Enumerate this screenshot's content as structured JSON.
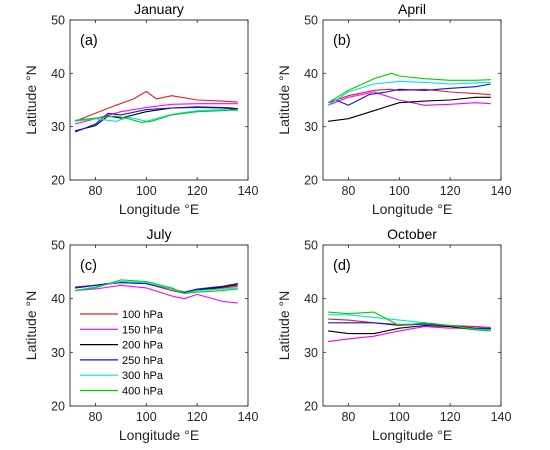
{
  "legend": [
    {
      "label": "100 hPa",
      "color": "#e8201f"
    },
    {
      "label": "150 hPa",
      "color": "#ff00ff"
    },
    {
      "label": "200 hPa",
      "color": "#000000"
    },
    {
      "label": "250 hPa",
      "color": "#1515d0"
    },
    {
      "label": "300 hPa",
      "color": "#00e0f0"
    },
    {
      "label": "400 hPa",
      "color": "#00d000"
    }
  ],
  "chart_data": [
    {
      "type": "line",
      "title": "January",
      "label": "(a)",
      "xlabel": "Longitude °E",
      "ylabel": "Latitude °N",
      "xlim": [
        70,
        140
      ],
      "ylim": [
        20,
        50
      ],
      "xticks": [
        80,
        100,
        120,
        140
      ],
      "yticks": [
        20,
        30,
        40,
        50
      ],
      "series": [
        {
          "x": [
            72,
            80,
            88,
            95,
            100,
            104,
            110,
            120,
            130,
            136
          ],
          "y": [
            31,
            32.5,
            34,
            35.2,
            36.6,
            35.2,
            35.8,
            35.0,
            34.8,
            34.6
          ]
        },
        {
          "x": [
            72,
            80,
            90,
            100,
            110,
            120,
            130,
            136
          ],
          "y": [
            30.5,
            31.5,
            32.8,
            33.6,
            34.2,
            34.3,
            34.3,
            34.3
          ]
        },
        {
          "x": [
            72,
            80,
            85,
            90,
            100,
            110,
            120,
            130,
            136
          ],
          "y": [
            29.2,
            30.2,
            32.0,
            31.6,
            32.8,
            33.5,
            33.7,
            33.6,
            33.4
          ]
        },
        {
          "x": [
            72,
            80,
            85,
            90,
            100,
            110,
            120,
            130,
            136
          ],
          "y": [
            29.0,
            30.5,
            32.5,
            32.2,
            33.2,
            33.5,
            33.6,
            33.5,
            33.2
          ]
        },
        {
          "x": [
            72,
            80,
            88,
            93,
            100,
            110,
            120,
            130,
            136
          ],
          "y": [
            31.0,
            31.5,
            31.0,
            31.8,
            31.0,
            32.3,
            33.0,
            33.2,
            33.0
          ]
        },
        {
          "x": [
            72,
            80,
            88,
            93,
            98,
            102,
            110,
            120,
            130,
            136
          ],
          "y": [
            31.2,
            31.6,
            32.0,
            31.5,
            30.8,
            31.0,
            32.2,
            32.8,
            33.0,
            33.2
          ]
        }
      ]
    },
    {
      "type": "line",
      "title": "April",
      "label": "(b)",
      "xlabel": "Longitude °E",
      "ylabel": "Latitude °N",
      "xlim": [
        70,
        140
      ],
      "ylim": [
        20,
        50
      ],
      "xticks": [
        80,
        100,
        120,
        140
      ],
      "yticks": [
        20,
        30,
        40,
        50
      ],
      "series": [
        {
          "x": [
            72,
            80,
            90,
            96,
            100,
            110,
            120,
            130,
            136
          ],
          "y": [
            34.5,
            35.8,
            36.8,
            37.0,
            36.8,
            37.0,
            36.5,
            36.2,
            36.0
          ]
        },
        {
          "x": [
            72,
            80,
            90,
            100,
            110,
            120,
            130,
            136
          ],
          "y": [
            34.0,
            35.5,
            36.5,
            35.0,
            34.0,
            34.2,
            34.5,
            34.3
          ]
        },
        {
          "x": [
            72,
            80,
            90,
            100,
            110,
            120,
            130,
            136
          ],
          "y": [
            31.0,
            31.5,
            33.0,
            34.5,
            34.8,
            35.0,
            35.5,
            35.5
          ]
        },
        {
          "x": [
            72,
            75,
            80,
            88,
            95,
            100,
            110,
            120,
            130,
            136
          ],
          "y": [
            34.0,
            35.0,
            34.0,
            36.0,
            36.5,
            37.0,
            36.8,
            37.2,
            37.5,
            38.0
          ]
        },
        {
          "x": [
            72,
            80,
            90,
            100,
            110,
            120,
            130,
            136
          ],
          "y": [
            34.0,
            36.5,
            38.0,
            38.5,
            38.3,
            38.0,
            38.2,
            38.3
          ]
        },
        {
          "x": [
            72,
            80,
            90,
            97,
            100,
            110,
            120,
            130,
            136
          ],
          "y": [
            34.5,
            36.8,
            39.0,
            40.0,
            39.5,
            39.0,
            38.7,
            38.7,
            38.8
          ]
        }
      ]
    },
    {
      "type": "line",
      "title": "July",
      "label": "(c)",
      "xlabel": "Longitude °E",
      "ylabel": "Latitude °N",
      "xlim": [
        70,
        140
      ],
      "ylim": [
        20,
        50
      ],
      "xticks": [
        80,
        100,
        120,
        140
      ],
      "yticks": [
        20,
        30,
        40,
        50
      ],
      "series": [
        {
          "x": [
            72,
            80,
            90,
            100,
            110,
            115,
            120,
            130,
            136
          ],
          "y": [
            42.2,
            42.5,
            43.2,
            42.8,
            41.5,
            41.0,
            41.5,
            42.0,
            42.3
          ]
        },
        {
          "x": [
            72,
            80,
            90,
            100,
            110,
            115,
            120,
            130,
            136
          ],
          "y": [
            41.5,
            41.8,
            42.5,
            42.0,
            40.5,
            40.0,
            40.8,
            39.5,
            39.2
          ]
        },
        {
          "x": [
            72,
            80,
            90,
            100,
            110,
            115,
            120,
            130,
            136
          ],
          "y": [
            42.0,
            42.5,
            43.0,
            42.8,
            41.8,
            41.0,
            41.6,
            42.2,
            42.6
          ]
        },
        {
          "x": [
            72,
            80,
            90,
            100,
            110,
            115,
            120,
            130,
            136
          ],
          "y": [
            42.0,
            42.5,
            43.0,
            42.8,
            41.8,
            41.2,
            41.8,
            42.3,
            42.8
          ]
        },
        {
          "x": [
            72,
            80,
            90,
            100,
            110,
            115,
            120,
            130,
            136
          ],
          "y": [
            41.5,
            42.2,
            43.2,
            43.0,
            41.8,
            41.0,
            41.5,
            41.8,
            42.0
          ]
        },
        {
          "x": [
            72,
            80,
            90,
            100,
            110,
            115,
            120,
            130,
            136
          ],
          "y": [
            41.5,
            42.0,
            43.5,
            43.2,
            42.0,
            41.0,
            41.2,
            41.5,
            41.8
          ]
        }
      ]
    },
    {
      "type": "line",
      "title": "October",
      "label": "(d)",
      "xlabel": "Longitude °E",
      "ylabel": "Latitude °N",
      "xlim": [
        70,
        140
      ],
      "ylim": [
        20,
        50
      ],
      "xticks": [
        80,
        100,
        120,
        140
      ],
      "yticks": [
        20,
        30,
        40,
        50
      ],
      "series": [
        {
          "x": [
            72,
            80,
            90,
            100,
            110,
            120,
            130,
            136
          ],
          "y": [
            36.2,
            36.0,
            35.5,
            35.2,
            35.3,
            35.0,
            34.8,
            34.6
          ]
        },
        {
          "x": [
            72,
            80,
            90,
            100,
            110,
            120,
            130,
            136
          ],
          "y": [
            32.0,
            32.5,
            33.0,
            34.0,
            34.8,
            34.5,
            34.5,
            34.5
          ]
        },
        {
          "x": [
            72,
            80,
            90,
            100,
            110,
            120,
            130,
            136
          ],
          "y": [
            34.0,
            33.5,
            33.5,
            34.5,
            35.0,
            34.8,
            34.2,
            34.4
          ]
        },
        {
          "x": [
            72,
            80,
            90,
            100,
            110,
            120,
            130,
            136
          ],
          "y": [
            35.5,
            35.5,
            35.5,
            35.0,
            35.3,
            35.0,
            34.5,
            34.4
          ]
        },
        {
          "x": [
            72,
            80,
            90,
            100,
            110,
            120,
            130,
            136
          ],
          "y": [
            37.0,
            37.0,
            36.5,
            36.0,
            35.5,
            35.0,
            34.3,
            34.2
          ]
        },
        {
          "x": [
            72,
            80,
            90,
            100,
            110,
            120,
            130,
            136
          ],
          "y": [
            37.5,
            37.2,
            37.5,
            35.0,
            35.5,
            35.0,
            34.2,
            34.0
          ]
        }
      ]
    }
  ]
}
